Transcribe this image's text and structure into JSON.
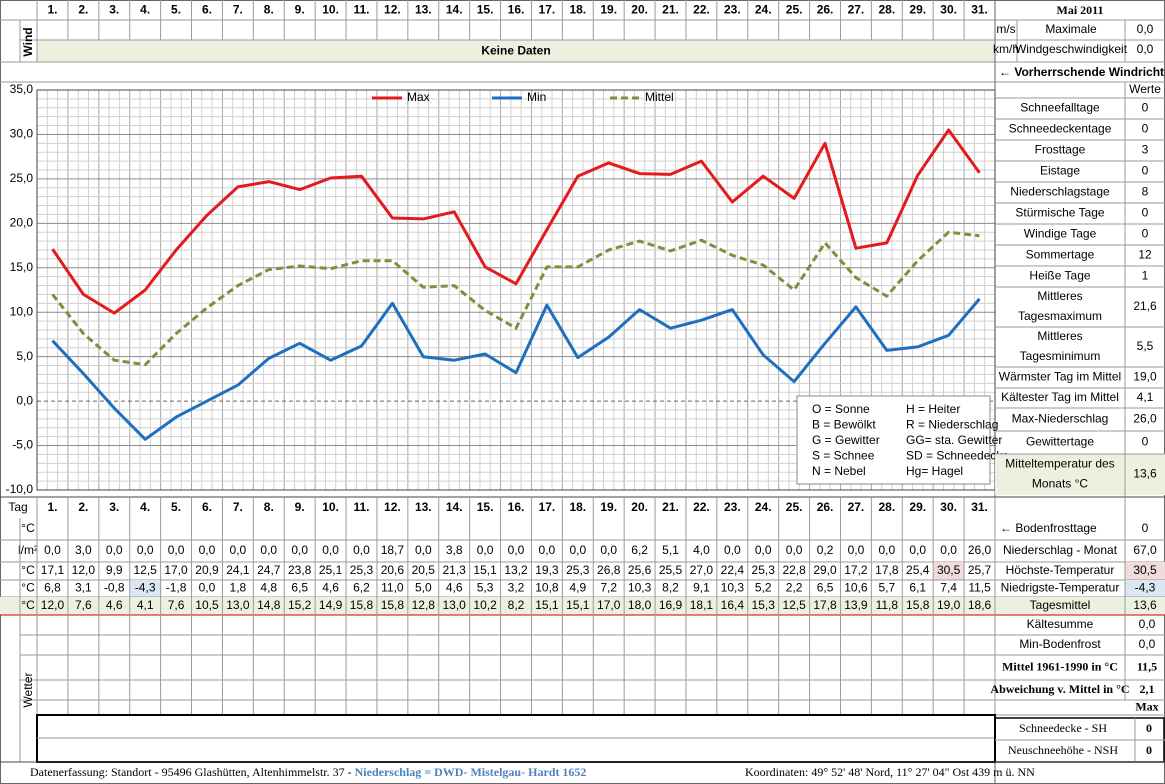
{
  "header": {
    "month": "Mai 2011",
    "wind_label": "Wind",
    "no_data": "Keine Daten",
    "wind_units": [
      "m/s",
      "km/h"
    ],
    "max_wind_label": [
      "Maximale",
      "Windgeschwindigkeit"
    ],
    "max_wind_values": [
      "0,0",
      "0,0"
    ],
    "wind_direction": "← Vorherrschende Windrichtung"
  },
  "chart_data": {
    "type": "line",
    "categories": [
      "1.",
      "2.",
      "3.",
      "4.",
      "5.",
      "6.",
      "7.",
      "8.",
      "9.",
      "10.",
      "11.",
      "12.",
      "13.",
      "14.",
      "15.",
      "16.",
      "17.",
      "18.",
      "19.",
      "20.",
      "21.",
      "22.",
      "23.",
      "24.",
      "25.",
      "26.",
      "27.",
      "28.",
      "29.",
      "30.",
      "31."
    ],
    "series": [
      {
        "name": "Max",
        "color": "#e41a1c",
        "line_style": "solid",
        "values": [
          17.1,
          12.0,
          9.9,
          12.5,
          17.0,
          20.9,
          24.1,
          24.7,
          23.8,
          25.1,
          25.3,
          20.6,
          20.5,
          21.3,
          15.1,
          13.2,
          19.3,
          25.3,
          26.8,
          25.6,
          25.5,
          27.0,
          22.4,
          25.3,
          22.8,
          29.0,
          17.2,
          17.8,
          25.4,
          30.5,
          25.7
        ],
        "value_labels": [
          "17,1",
          "12,0",
          "9,9",
          "12,5",
          "17,0",
          "20,9",
          "24,1",
          "24,7",
          "23,8",
          "25,1",
          "25,3",
          "20,6",
          "20,5",
          "21,3",
          "15,1",
          "13,2",
          "19,3",
          "25,3",
          "26,8",
          "25,6",
          "25,5",
          "27,0",
          "22,4",
          "25,3",
          "22,8",
          "29,0",
          "17,2",
          "17,8",
          "25,4",
          "30,5",
          "25,7"
        ]
      },
      {
        "name": "Min",
        "color": "#1f6fbf",
        "line_style": "solid",
        "values": [
          6.8,
          3.1,
          -0.8,
          -4.3,
          -1.8,
          0.0,
          1.8,
          4.8,
          6.5,
          4.6,
          6.2,
          11.0,
          5.0,
          4.6,
          5.3,
          3.2,
          10.8,
          4.9,
          7.2,
          10.3,
          8.2,
          9.1,
          10.3,
          5.2,
          2.2,
          6.5,
          10.6,
          5.7,
          6.1,
          7.4,
          11.5
        ],
        "value_labels": [
          "6,8",
          "3,1",
          "-0,8",
          "-4,3",
          "-1,8",
          "0,0",
          "1,8",
          "4,8",
          "6,5",
          "4,6",
          "6,2",
          "11,0",
          "5,0",
          "4,6",
          "5,3",
          "3,2",
          "10,8",
          "4,9",
          "7,2",
          "10,3",
          "8,2",
          "9,1",
          "10,3",
          "5,2",
          "2,2",
          "6,5",
          "10,6",
          "5,7",
          "6,1",
          "7,4",
          "11,5"
        ]
      },
      {
        "name": "Mittel",
        "color": "#77933c",
        "line_style": "dashed",
        "values": [
          12.0,
          7.6,
          4.6,
          4.1,
          7.6,
          10.5,
          13.0,
          14.8,
          15.2,
          14.9,
          15.8,
          15.8,
          12.8,
          13.0,
          10.2,
          8.2,
          15.1,
          15.1,
          17.0,
          18.0,
          16.9,
          18.1,
          16.4,
          15.3,
          12.5,
          17.8,
          13.9,
          11.8,
          15.8,
          19.0,
          18.6
        ],
        "value_labels": [
          "12,0",
          "7,6",
          "4,6",
          "4,1",
          "7,6",
          "10,5",
          "13,0",
          "14,8",
          "15,2",
          "14,9",
          "15,8",
          "15,8",
          "12,8",
          "13,0",
          "10,2",
          "8,2",
          "15,1",
          "15,1",
          "17,0",
          "18,0",
          "16,9",
          "18,1",
          "16,4",
          "15,3",
          "12,5",
          "17,8",
          "13,9",
          "11,8",
          "15,8",
          "19,0",
          "18,6"
        ]
      }
    ],
    "ylim": [
      -10,
      35
    ],
    "yticks": [
      {
        "value": 35,
        "label": "35,0"
      },
      {
        "value": 30,
        "label": "30,0"
      },
      {
        "value": 25,
        "label": "25,0"
      },
      {
        "value": 20,
        "label": "20,0"
      },
      {
        "value": 15,
        "label": "15,0"
      },
      {
        "value": 10,
        "label": "10,0"
      },
      {
        "value": 5,
        "label": "5,0"
      },
      {
        "value": 0,
        "label": "0,0"
      },
      {
        "value": -5,
        "label": "-5,0"
      },
      {
        "value": -10,
        "label": "-10,0"
      }
    ],
    "grid": true
  },
  "symbols": [
    [
      "O = Sonne",
      "H = Heiter"
    ],
    [
      "B = Bewölkt",
      "R = Niederschlag"
    ],
    [
      "G = Gewitter",
      "GG= sta. Gewitter"
    ],
    [
      "S = Schnee",
      "SD = Schneedecke"
    ],
    [
      "N = Nebel",
      "Hg= Hagel"
    ]
  ],
  "stats": {
    "header": "Werte",
    "rows": [
      {
        "label": "Schneefalltage",
        "value": "0"
      },
      {
        "label": "Schneedeckentage",
        "value": "0"
      },
      {
        "label": "Frosttage",
        "value": "3"
      },
      {
        "label": "Eistage",
        "value": "0"
      },
      {
        "label": "Niederschlagstage",
        "value": "8"
      },
      {
        "label": "Stürmische Tage",
        "value": "0"
      },
      {
        "label": "Windige Tage",
        "value": "0"
      },
      {
        "label": "Sommertage",
        "value": "12"
      },
      {
        "label": "Heiße Tage",
        "value": "1"
      },
      {
        "label": [
          "Mittleres",
          "Tagesmaximum"
        ],
        "value": "21,6"
      },
      {
        "label": [
          "Mittleres",
          "Tagesminimum"
        ],
        "value": "5,5"
      },
      {
        "label": "Wärmster Tag im Mittel",
        "value": "19,0"
      },
      {
        "label": "Kältester Tag im Mittel",
        "value": "4,1"
      },
      {
        "label": "Max-Niederschlag",
        "value": "26,0"
      },
      {
        "label": "Gewittertage",
        "value": "0"
      },
      {
        "label": [
          "Mitteltemperatur des",
          "Monats °C"
        ],
        "value": "13,6",
        "background": "#ebf1de"
      }
    ]
  },
  "table": {
    "tag_label": "Tag",
    "units": [
      "°C",
      "l/m²",
      "°C",
      "°C",
      "°C"
    ],
    "precipitation": [
      "0,0",
      "3,0",
      "0,0",
      "0,0",
      "0,0",
      "0,0",
      "0,0",
      "0,0",
      "0,0",
      "0,0",
      "0,0",
      "18,7",
      "0,0",
      "3,8",
      "0,0",
      "0,0",
      "0,0",
      "0,0",
      "0,0",
      "6,2",
      "5,1",
      "4,0",
      "0,0",
      "0,0",
      "0,0",
      "0,2",
      "0,0",
      "0,0",
      "0,0",
      "0,0",
      "26,0"
    ],
    "right": [
      {
        "label": "← Bodenfrosttage",
        "value": "0"
      },
      {
        "label": "Niederschlag - Monat",
        "value": "67,0"
      },
      {
        "label": "Höchste-Temperatur",
        "value": "30,5",
        "background": "#f2dcdb"
      },
      {
        "label": "Niedrigste-Temperatur",
        "value": "-4,3",
        "background": "#dce6f1"
      },
      {
        "label": "Tagesmittel",
        "value": "13,6",
        "background": "#ebf1de"
      }
    ]
  },
  "bottom": {
    "weather_label": "Wetter",
    "summary": [
      {
        "label": "Kältesumme",
        "value": "0,0"
      },
      {
        "label": "Min-Bodenfrost",
        "value": "0,0"
      },
      {
        "label": "Mittel 1961-1990 in °C",
        "value": "11,5"
      },
      {
        "label": "Abweichung v. Mittel in °C",
        "value": "2,1"
      }
    ],
    "max_label": "Max",
    "snow": [
      {
        "label": "Schneedecke -  SH",
        "value": "0"
      },
      {
        "label": "Neuschneehöhe - NSH",
        "value": "0"
      }
    ]
  },
  "footer": {
    "left": "Datenerfassung:  Standort  -  95496  Glashütten, Altenhimmelstr. 37 - ",
    "left_highlight": "Niederschlag = DWD- Mistelgau- Hardt 1652",
    "right": "Koordinaten:  49° 52' 48' Nord,   11° 27' 04\" Ost   439 m ü. NN"
  }
}
